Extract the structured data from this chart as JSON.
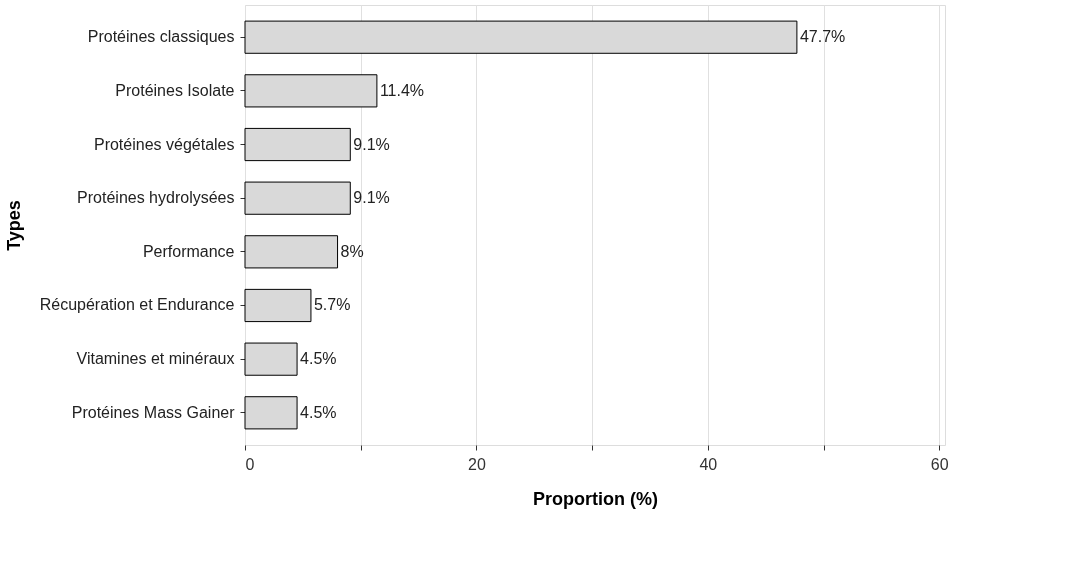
{
  "chart_data": {
    "type": "bar",
    "orientation": "horizontal",
    "xlabel": "Proportion (%)",
    "ylabel": "Types",
    "categories": [
      "Protéines classiques",
      "Protéines Isolate",
      "Protéines végétales",
      "Protéines hydrolysées",
      "Performance",
      "Récupération et Endurance",
      "Vitamines et minéraux",
      "Protéines Mass Gainer"
    ],
    "values": [
      47.7,
      11.4,
      9.1,
      9.1,
      8,
      5.7,
      4.5,
      4.5
    ],
    "value_labels": [
      "47.7%",
      "11.4%",
      "9.1%",
      "9.1%",
      "8%",
      "5.7%",
      "4.5%",
      "4.5%"
    ],
    "color": "#d9d9d9",
    "xlim": [
      0,
      60.5
    ],
    "xticks": [
      0,
      {
        "value": 10,
        "label": null
      },
      20,
      {
        "value": 30,
        "label": null
      },
      40,
      {
        "value": 50,
        "label": null
      },
      60
    ],
    "grid": "x"
  }
}
